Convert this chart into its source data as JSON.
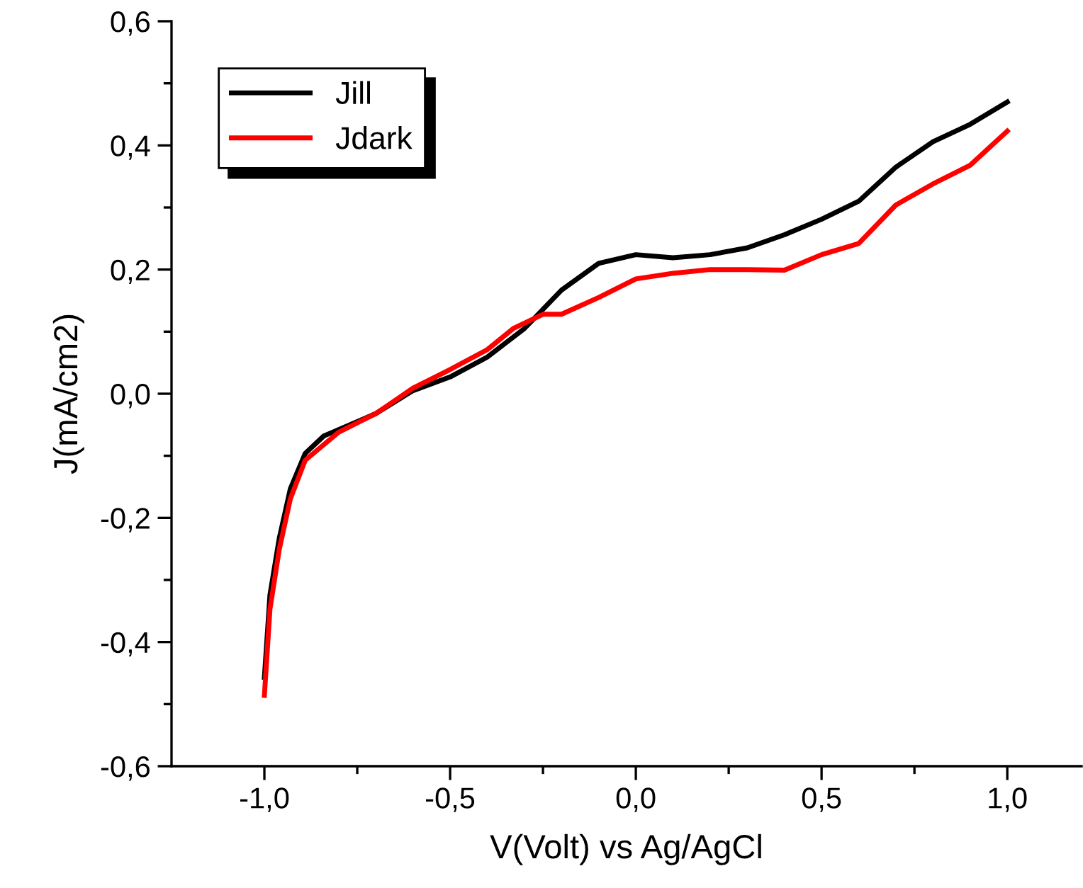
{
  "chart_data": {
    "type": "line",
    "xlabel": "V(Volt) vs Ag/AgCl",
    "ylabel": "J(mA/cm2)",
    "xlim": [
      -1.25,
      1.2
    ],
    "ylim": [
      -0.6,
      0.6
    ],
    "xticks": [
      {
        "value": -1.0,
        "label": "-1,0"
      },
      {
        "value": -0.5,
        "label": "-0,5"
      },
      {
        "value": 0.0,
        "label": "0,0"
      },
      {
        "value": 0.5,
        "label": "0,5"
      },
      {
        "value": 1.0,
        "label": "1,0"
      }
    ],
    "yticks": [
      {
        "value": -0.6,
        "label": "-0,6"
      },
      {
        "value": -0.4,
        "label": "-0,4"
      },
      {
        "value": -0.2,
        "label": "-0,2"
      },
      {
        "value": 0.0,
        "label": "0,0"
      },
      {
        "value": 0.2,
        "label": "0,2"
      },
      {
        "value": 0.4,
        "label": "0,4"
      },
      {
        "value": 0.6,
        "label": "0,6"
      }
    ],
    "legend": "top left",
    "grid": false,
    "marker": "none",
    "line_style": "solid",
    "series": [
      {
        "name": "Jill",
        "color": "#000000",
        "x": [
          -1.0,
          -0.985,
          -0.96,
          -0.93,
          -0.89,
          -0.84,
          -0.75,
          -0.7,
          -0.6,
          -0.5,
          -0.4,
          -0.3,
          -0.2,
          -0.1,
          0.0,
          0.1,
          0.2,
          0.3,
          0.4,
          0.5,
          0.6,
          0.7,
          0.8,
          0.9,
          1.0
        ],
        "values": [
          -0.457,
          -0.324,
          -0.233,
          -0.153,
          -0.096,
          -0.068,
          -0.045,
          -0.032,
          0.005,
          0.027,
          0.059,
          0.105,
          0.167,
          0.21,
          0.224,
          0.219,
          0.224,
          0.235,
          0.256,
          0.281,
          0.31,
          0.365,
          0.406,
          0.434,
          0.47
        ]
      },
      {
        "name": "Jdark",
        "color": "#ff0000",
        "x": [
          -1.0,
          -0.985,
          -0.96,
          -0.93,
          -0.89,
          -0.8,
          -0.7,
          -0.6,
          -0.5,
          -0.4,
          -0.33,
          -0.25,
          -0.2,
          -0.1,
          0.0,
          0.1,
          0.2,
          0.3,
          0.4,
          0.5,
          0.6,
          0.7,
          0.8,
          0.9,
          1.0
        ],
        "values": [
          -0.486,
          -0.347,
          -0.251,
          -0.169,
          -0.107,
          -0.062,
          -0.032,
          0.009,
          0.039,
          0.071,
          0.105,
          0.128,
          0.128,
          0.155,
          0.185,
          0.194,
          0.2,
          0.2,
          0.199,
          0.224,
          0.242,
          0.304,
          0.338,
          0.368,
          0.423
        ]
      }
    ]
  }
}
